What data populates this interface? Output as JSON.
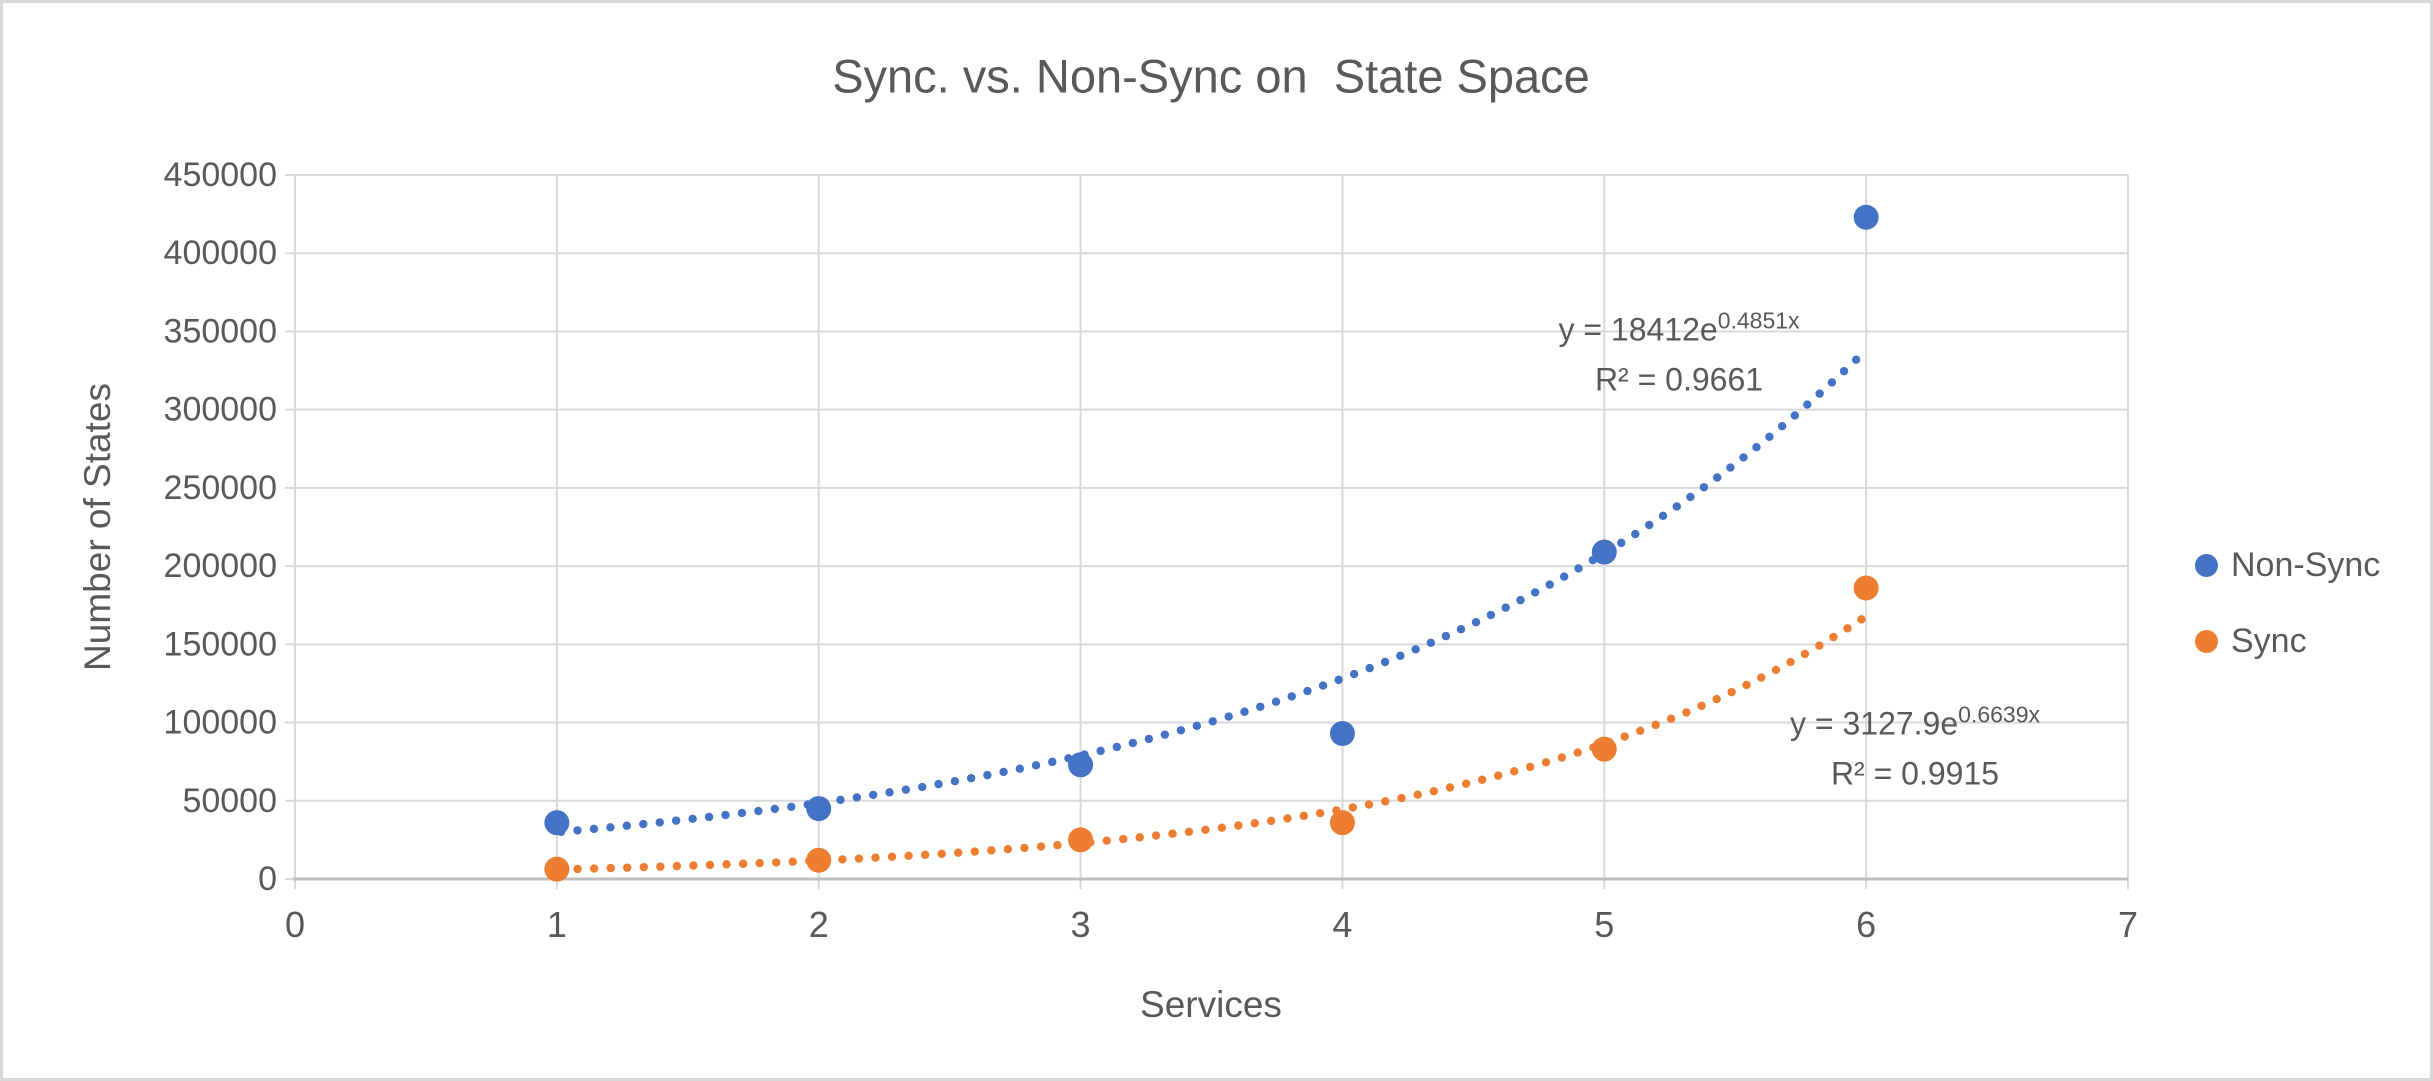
{
  "chart_data": {
    "type": "scatter",
    "title": "Sync. vs. Non-Sync on  State Space",
    "xlabel": "Services",
    "ylabel": "Number of States",
    "xlim": [
      0,
      7
    ],
    "ylim": [
      0,
      450000
    ],
    "x_ticks": [
      0,
      1,
      2,
      3,
      4,
      5,
      6,
      7
    ],
    "y_ticks": [
      0,
      50000,
      100000,
      150000,
      200000,
      250000,
      300000,
      350000,
      400000,
      450000
    ],
    "grid": true,
    "legend_position": "right",
    "marker_style": "filled-circle",
    "trendline_style": "dotted",
    "series": [
      {
        "name": "Non-Sync",
        "color": "#4472C4",
        "x": [
          1,
          2,
          3,
          4,
          5,
          6
        ],
        "y": [
          36000,
          45000,
          73000,
          93000,
          209000,
          423000
        ],
        "trendline": {
          "type": "exponential",
          "coefficient": 18412,
          "rate": 0.4851,
          "r_squared": 0.9661,
          "equation_prefix": "y = 18412e",
          "equation_exponent": "0.4851x",
          "r2_label": "R² = 0.9661"
        }
      },
      {
        "name": "Sync",
        "color": "#ED7D31",
        "x": [
          1,
          2,
          3,
          4,
          5,
          6
        ],
        "y": [
          6300,
          12000,
          25000,
          36000,
          83000,
          186000
        ],
        "trendline": {
          "type": "exponential",
          "coefficient": 3127.9,
          "rate": 0.6639,
          "r_squared": 0.9915,
          "equation_prefix": "y = 3127.9e",
          "equation_exponent": "0.6639x",
          "r2_label": "R² = 0.9915"
        }
      }
    ]
  },
  "legend": {
    "items": [
      {
        "label": "Non-Sync",
        "color": "#4472C4"
      },
      {
        "label": "Sync",
        "color": "#ED7D31"
      }
    ]
  },
  "colors": {
    "gridline": "#D9D9D9",
    "axis_line": "#BFBFBF",
    "text": "#595959",
    "background": "#FFFFFF",
    "frame_border": "#D8D8D8"
  }
}
